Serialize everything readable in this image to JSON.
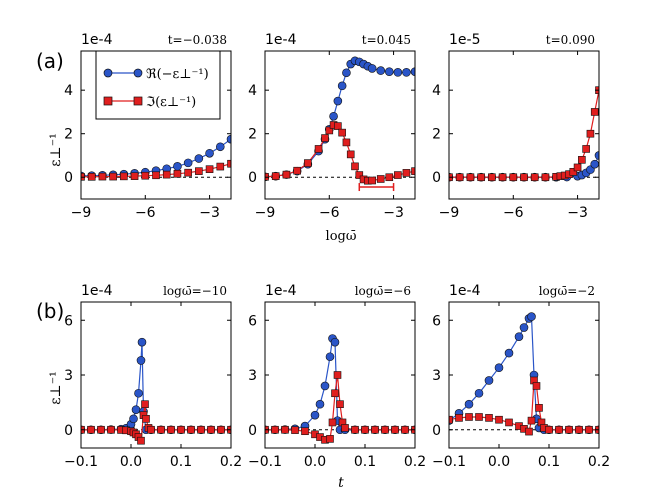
{
  "colors": {
    "real": "#2a55c8",
    "imag": "#e01e1e",
    "edge": "#111111"
  },
  "row_labels": {
    "a": "(a)",
    "b": "(b)"
  },
  "legend": {
    "real": "ℜ(−ε⊥⁻¹)",
    "imag": "ℑ(ε⊥⁻¹)"
  },
  "ylabel": "ε⊥⁻¹",
  "xlabel_a": "logω̄",
  "xlabel_b": "t",
  "chart_data": [
    {
      "type": "scatter",
      "row": "a",
      "title": "t=−0.038",
      "scale_label": "1e-4",
      "xlim": [
        -9,
        -2
      ],
      "ylim": [
        -1.0,
        5.8
      ],
      "xticks": [
        -9,
        -6,
        -3
      ],
      "yticks": [
        0,
        2,
        4
      ],
      "ytick_labels": [
        "0",
        "2",
        "4"
      ],
      "series": [
        {
          "name": "ℜ(−ε⊥⁻¹)",
          "x": [
            -9,
            -8.5,
            -8,
            -7.5,
            -7,
            -6.5,
            -6,
            -5.5,
            -5,
            -4.5,
            -4,
            -3.5,
            -3,
            -2.5,
            -2
          ],
          "y": [
            0.06,
            0.07,
            0.09,
            0.11,
            0.14,
            0.18,
            0.23,
            0.3,
            0.39,
            0.5,
            0.66,
            0.86,
            1.1,
            1.4,
            1.75
          ]
        },
        {
          "name": "ℑ(ε⊥⁻¹)",
          "x": [
            -9,
            -8.5,
            -8,
            -7.5,
            -7,
            -6.5,
            -6,
            -5.5,
            -5,
            -4.5,
            -4,
            -3.5,
            -3,
            -2.5,
            -2
          ],
          "y": [
            0.02,
            0.02,
            0.03,
            0.03,
            0.04,
            0.05,
            0.07,
            0.09,
            0.12,
            0.16,
            0.21,
            0.28,
            0.37,
            0.49,
            0.62
          ]
        }
      ]
    },
    {
      "type": "scatter",
      "row": "a",
      "title": "t=0.045",
      "scale_label": "1e-4",
      "xlim": [
        -9,
        -2
      ],
      "ylim": [
        -1.0,
        5.8
      ],
      "xticks": [
        -9,
        -6,
        -3
      ],
      "yticks": [
        0,
        2,
        4
      ],
      "ytick_labels": [
        "0",
        "2",
        "4"
      ],
      "error_bar": {
        "x0": -4.6,
        "x1": -3.0,
        "y": -0.45
      },
      "series": [
        {
          "name": "ℜ(−ε⊥⁻¹)",
          "x": [
            -9,
            -8.5,
            -8,
            -7.5,
            -7,
            -6.5,
            -6.2,
            -6,
            -5.8,
            -5.6,
            -5.4,
            -5.2,
            -5,
            -4.8,
            -4.6,
            -4.4,
            -4.2,
            -4,
            -3.6,
            -3.2,
            -2.8,
            -2.4,
            -2
          ],
          "y": [
            0.02,
            0.05,
            0.12,
            0.28,
            0.6,
            1.2,
            1.75,
            2.2,
            2.8,
            3.5,
            4.2,
            4.8,
            5.2,
            5.35,
            5.3,
            5.2,
            5.1,
            5.0,
            4.9,
            4.85,
            4.82,
            4.82,
            4.85
          ]
        },
        {
          "name": "ℑ(ε⊥⁻¹)",
          "x": [
            -9,
            -8.5,
            -8,
            -7.5,
            -7,
            -6.5,
            -6.2,
            -6,
            -5.8,
            -5.6,
            -5.4,
            -5.2,
            -5,
            -4.8,
            -4.6,
            -4.4,
            -4.2,
            -4,
            -3.6,
            -3.2,
            -2.8,
            -2.4,
            -2
          ],
          "y": [
            0.02,
            0.05,
            0.12,
            0.3,
            0.65,
            1.3,
            1.8,
            2.15,
            2.4,
            2.35,
            2.05,
            1.6,
            1.05,
            0.5,
            0.1,
            -0.1,
            -0.16,
            -0.15,
            -0.08,
            0.0,
            0.1,
            0.2,
            0.28
          ]
        }
      ]
    },
    {
      "type": "scatter",
      "row": "a",
      "title": "t=0.090",
      "scale_label": "1e-5",
      "xlim": [
        -9,
        -2
      ],
      "ylim": [
        -1.0,
        5.8
      ],
      "xticks": [
        -9,
        -6,
        -3
      ],
      "yticks": [
        0,
        2,
        4
      ],
      "ytick_labels": [
        "0",
        "2",
        "4"
      ],
      "series": [
        {
          "name": "ℜ(−ε⊥⁻¹)",
          "x": [
            -9,
            -8.5,
            -8,
            -7.5,
            -7,
            -6.5,
            -6,
            -5.5,
            -5,
            -4.5,
            -4,
            -3.5,
            -3,
            -2.8,
            -2.6,
            -2.4,
            -2.2,
            -2
          ],
          "y": [
            0,
            0,
            0,
            0,
            0,
            0,
            0,
            0,
            0,
            0,
            0,
            0.01,
            0.05,
            0.1,
            0.2,
            0.35,
            0.6,
            1.0
          ]
        },
        {
          "name": "ℑ(ε⊥⁻¹)",
          "x": [
            -9,
            -8.5,
            -8,
            -7.5,
            -7,
            -6.5,
            -6,
            -5.5,
            -5,
            -4.5,
            -4,
            -3.8,
            -3.6,
            -3.4,
            -3.2,
            -3,
            -2.8,
            -2.6,
            -2.4,
            -2.2,
            -2
          ],
          "y": [
            0,
            0,
            0,
            0,
            0,
            0,
            0,
            0,
            0,
            0,
            0.02,
            0.05,
            0.08,
            0.14,
            0.25,
            0.45,
            0.8,
            1.3,
            2.0,
            3.0,
            4.0
          ]
        }
      ]
    },
    {
      "type": "scatter",
      "row": "b",
      "title": "logω̄=−10",
      "scale_label": "1e-4",
      "xlim": [
        -0.1,
        0.2
      ],
      "ylim": [
        -1.0,
        7.0
      ],
      "xticks": [
        -0.1,
        0.0,
        0.1,
        0.2
      ],
      "xtick_labels": [
        "−0.1",
        "0.0",
        "0.1",
        "0.2"
      ],
      "yticks": [
        0,
        3,
        6
      ],
      "ytick_labels": [
        "0",
        "3",
        "6"
      ],
      "series": [
        {
          "name": "ℜ(−ε⊥⁻¹)",
          "x": [
            -0.1,
            -0.08,
            -0.06,
            -0.04,
            -0.02,
            -0.01,
            0,
            0.005,
            0.01,
            0.015,
            0.02,
            0.022,
            0.025,
            0.03,
            0.04,
            0.06,
            0.08,
            0.1,
            0.12,
            0.14,
            0.16,
            0.18,
            0.2
          ],
          "y": [
            0,
            0,
            0,
            0.01,
            0.03,
            0.08,
            0.3,
            0.6,
            1.1,
            2.0,
            3.8,
            4.8,
            1.0,
            0,
            0,
            0,
            0,
            0,
            0,
            0,
            0,
            0,
            0
          ]
        },
        {
          "name": "ℑ(ε⊥⁻¹)",
          "x": [
            -0.1,
            -0.08,
            -0.06,
            -0.04,
            -0.02,
            -0.01,
            0,
            0.005,
            0.01,
            0.015,
            0.02,
            0.025,
            0.028,
            0.03,
            0.035,
            0.04,
            0.06,
            0.08,
            0.1,
            0.12,
            0.14,
            0.16,
            0.18,
            0.2
          ],
          "y": [
            0,
            0,
            0,
            0,
            -0.01,
            -0.03,
            -0.08,
            -0.15,
            -0.25,
            -0.4,
            -0.6,
            0.8,
            1.4,
            0.6,
            0.1,
            0,
            0,
            0,
            0,
            0,
            0,
            0,
            0,
            0
          ]
        }
      ]
    },
    {
      "type": "scatter",
      "row": "b",
      "title": "logω̄=−6",
      "scale_label": "1e-4",
      "xlim": [
        -0.1,
        0.2
      ],
      "ylim": [
        -1.0,
        7.0
      ],
      "xticks": [
        -0.1,
        0.0,
        0.1,
        0.2
      ],
      "xtick_labels": [
        "−0.1",
        "0.0",
        "0.1",
        "0.2"
      ],
      "yticks": [
        0,
        3,
        6
      ],
      "ytick_labels": [
        "0",
        "3",
        "6"
      ],
      "series": [
        {
          "name": "ℜ(−ε⊥⁻¹)",
          "x": [
            -0.1,
            -0.08,
            -0.06,
            -0.04,
            -0.02,
            0,
            0.01,
            0.02,
            0.03,
            0.035,
            0.04,
            0.045,
            0.05,
            0.06,
            0.08,
            0.1,
            0.12,
            0.14,
            0.16,
            0.18,
            0.2
          ],
          "y": [
            0,
            0,
            0.01,
            0.05,
            0.2,
            0.8,
            1.4,
            2.4,
            4.0,
            5.0,
            4.8,
            0.5,
            0,
            0,
            0,
            0,
            0,
            0,
            0,
            0,
            0
          ]
        },
        {
          "name": "ℑ(ε⊥⁻¹)",
          "x": [
            -0.1,
            -0.08,
            -0.06,
            -0.04,
            -0.02,
            0,
            0.01,
            0.02,
            0.03,
            0.035,
            0.04,
            0.045,
            0.05,
            0.055,
            0.06,
            0.08,
            0.1,
            0.12,
            0.14,
            0.16,
            0.18,
            0.2
          ],
          "y": [
            0,
            0,
            0,
            -0.02,
            -0.08,
            -0.25,
            -0.4,
            -0.55,
            -0.5,
            0.4,
            2.0,
            3.0,
            1.4,
            0.4,
            0.1,
            0,
            0,
            0,
            0,
            0,
            0,
            0
          ]
        }
      ]
    },
    {
      "type": "scatter",
      "row": "b",
      "title": "logω̄=−2",
      "scale_label": "1e-4",
      "xlim": [
        -0.1,
        0.2
      ],
      "ylim": [
        -1.0,
        7.0
      ],
      "xticks": [
        -0.1,
        0.0,
        0.1,
        0.2
      ],
      "xtick_labels": [
        "−0.1",
        "0.0",
        "0.1",
        "0.2"
      ],
      "yticks": [
        0,
        3,
        6
      ],
      "ytick_labels": [
        "0",
        "3",
        "6"
      ],
      "series": [
        {
          "name": "ℜ(−ε⊥⁻¹)",
          "x": [
            -0.1,
            -0.08,
            -0.06,
            -0.04,
            -0.02,
            0,
            0.02,
            0.04,
            0.05,
            0.06,
            0.065,
            0.07,
            0.075,
            0.08,
            0.09,
            0.1,
            0.12,
            0.14,
            0.16,
            0.18,
            0.2
          ],
          "y": [
            0.5,
            0.9,
            1.4,
            2.0,
            2.7,
            3.4,
            4.2,
            5.1,
            5.6,
            6.1,
            6.2,
            3.0,
            0.6,
            0.1,
            0,
            0,
            0,
            0,
            0,
            0,
            0
          ]
        },
        {
          "name": "ℑ(ε⊥⁻¹)",
          "x": [
            -0.1,
            -0.08,
            -0.06,
            -0.04,
            -0.02,
            0,
            0.02,
            0.04,
            0.05,
            0.06,
            0.065,
            0.07,
            0.075,
            0.08,
            0.085,
            0.09,
            0.1,
            0.12,
            0.14,
            0.16,
            0.18,
            0.2
          ],
          "y": [
            0.55,
            0.65,
            0.7,
            0.7,
            0.65,
            0.55,
            0.4,
            0.2,
            0.05,
            -0.1,
            0.5,
            2.7,
            2.4,
            1.2,
            0.4,
            0.1,
            0,
            0,
            0,
            0,
            0,
            0
          ]
        }
      ]
    }
  ]
}
